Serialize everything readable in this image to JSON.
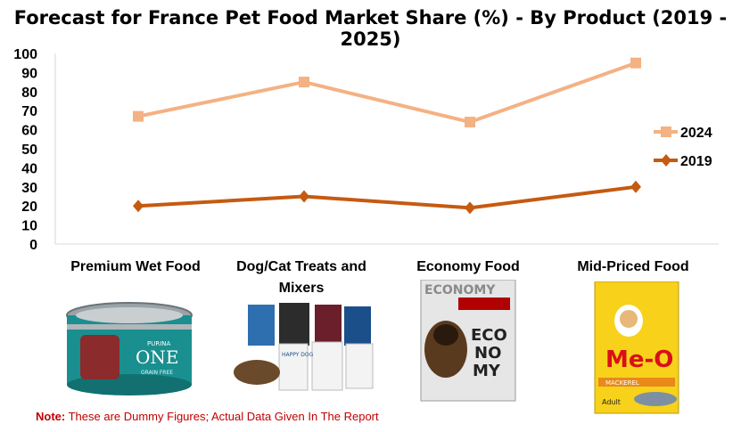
{
  "chart_data": {
    "type": "line",
    "title": "Forecast for France Pet Food Market Share (%)  - By Product (2019  - 2025)",
    "categories": [
      "Premium Wet Food",
      "Dog/Cat Treats and Mixers",
      "Economy Food",
      "Mid-Priced Food"
    ],
    "series": [
      {
        "name": "2024",
        "values": [
          67,
          85,
          64,
          95
        ],
        "color": "#f4b183",
        "marker": "square"
      },
      {
        "name": "2019",
        "values": [
          20,
          25,
          19,
          30
        ],
        "color": "#c55a11",
        "marker": "diamond"
      }
    ],
    "ylim": [
      0,
      100
    ],
    "yticks": [
      "0",
      "10",
      "20",
      "30",
      "40",
      "50",
      "60",
      "70",
      "80",
      "90",
      "100"
    ],
    "grid": false,
    "legend_position": "right"
  },
  "note": {
    "prefix": "Note:",
    "text": " These are Dummy Figures; Actual Data Given In The Report",
    "color": "#c00000"
  },
  "product_images": [
    {
      "icon": "purina-one-can",
      "lines": [
        "PURINA",
        "ONE",
        "GRAIN FREE"
      ]
    },
    {
      "icon": "happy-dog-packs",
      "lines": [
        "HAPPY DOG"
      ]
    },
    {
      "icon": "economy-friend-bag",
      "lines": [
        "ECONOMY",
        "ECO",
        "NO",
        "MY"
      ]
    },
    {
      "icon": "me-o-bag",
      "lines": [
        "Me-O",
        "MACKEREL",
        "Adult"
      ]
    }
  ]
}
